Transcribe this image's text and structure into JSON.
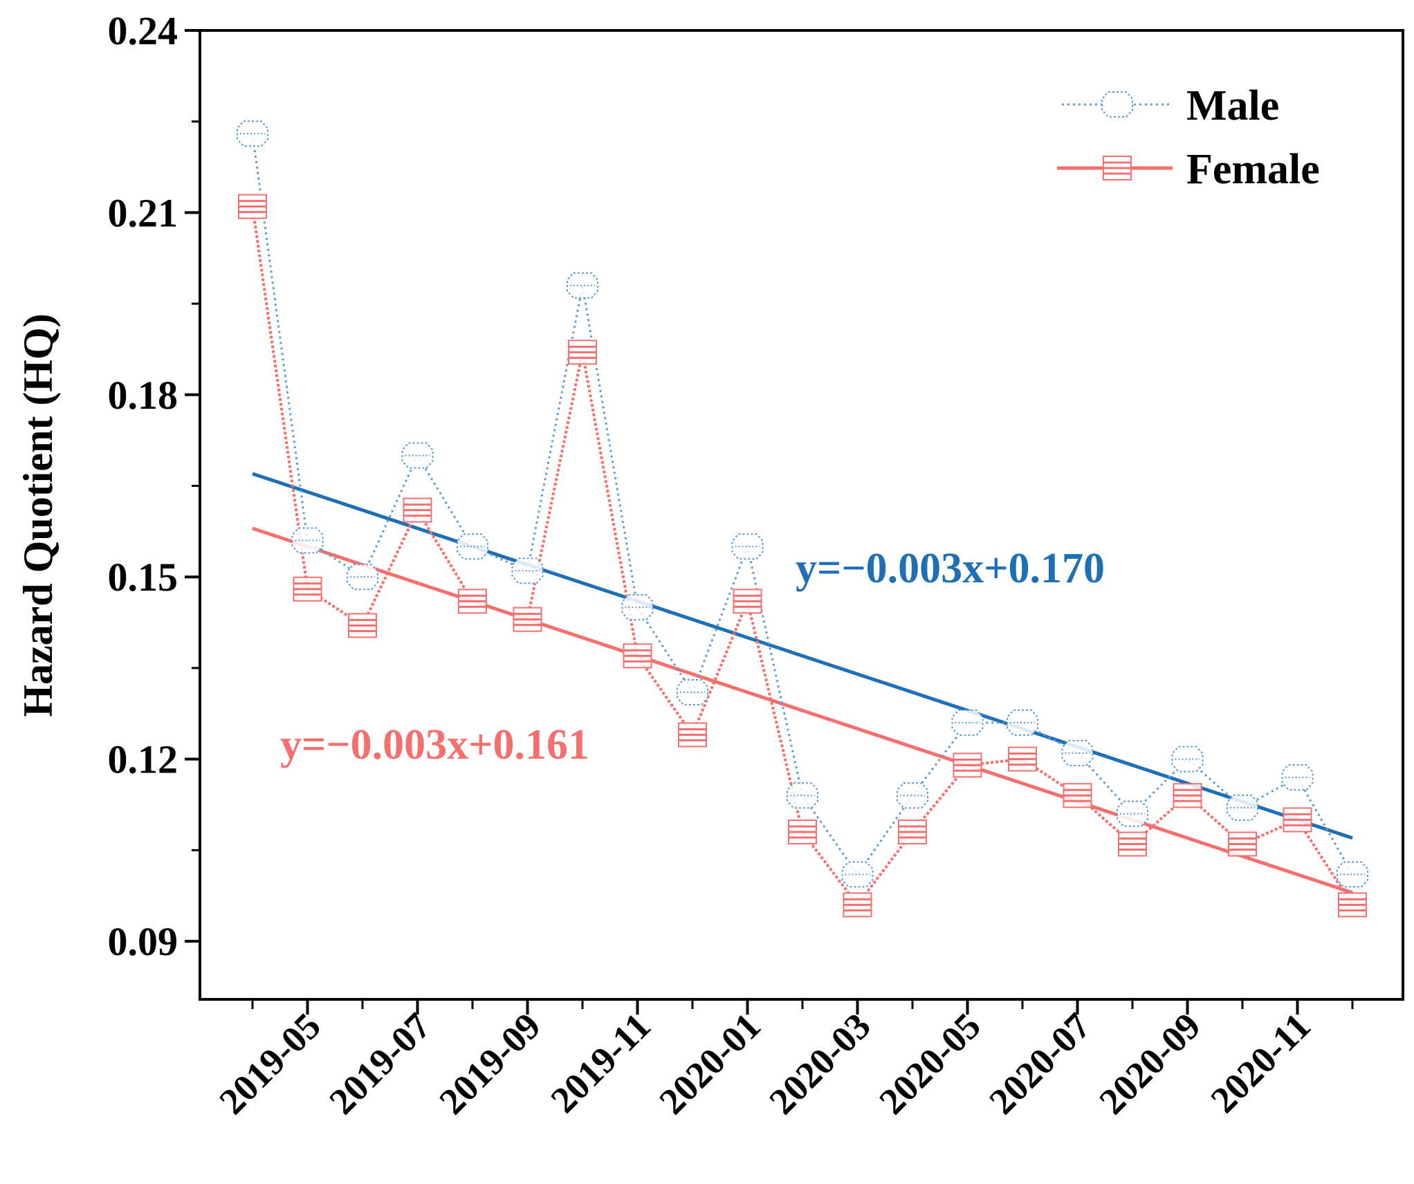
{
  "chart_data": {
    "type": "line",
    "title": "",
    "xlabel": "",
    "ylabel": "Hazard Quotient (HQ)",
    "ylim": [
      0.08,
      0.24
    ],
    "yticks": [
      "0.09",
      "0.12",
      "0.15",
      "0.18",
      "0.21",
      "0.24"
    ],
    "x": [
      "2019-04",
      "2019-05",
      "2019-06",
      "2019-07",
      "2019-08",
      "2019-09",
      "2019-10",
      "2019-11",
      "2019-12",
      "2020-01",
      "2020-02",
      "2020-03",
      "2020-04",
      "2020-05",
      "2020-06",
      "2020-07",
      "2020-08",
      "2020-09",
      "2020-10",
      "2020-11",
      "2020-12"
    ],
    "xtick_labels": [
      "2019-05",
      "2019-07",
      "2019-09",
      "2019-11",
      "2020-01",
      "2020-03",
      "2020-05",
      "2020-07",
      "2020-09",
      "2020-11"
    ],
    "series": [
      {
        "name": "Male",
        "color": "#5b9bd5",
        "values": [
          0.223,
          0.156,
          0.15,
          0.17,
          0.155,
          0.151,
          0.198,
          0.145,
          0.131,
          0.155,
          0.114,
          0.101,
          0.114,
          0.126,
          0.126,
          0.121,
          0.111,
          0.12,
          0.112,
          0.117,
          0.101
        ]
      },
      {
        "name": "Female",
        "color": "#f4706f",
        "values": [
          0.211,
          0.148,
          0.142,
          0.161,
          0.146,
          0.143,
          0.187,
          0.137,
          0.124,
          0.146,
          0.108,
          0.096,
          0.108,
          0.119,
          0.12,
          0.114,
          0.106,
          0.114,
          0.106,
          0.11,
          0.096
        ]
      }
    ],
    "trendlines": [
      {
        "name": "Male",
        "color": "#1f6fb5",
        "start": 0.167,
        "end": 0.107,
        "label": "y=−0.003x+0.170"
      },
      {
        "name": "Female",
        "color": "#f4706f",
        "start": 0.158,
        "end": 0.098,
        "label": "y=−0.003x+0.161"
      }
    ],
    "legend": {
      "position": "top-right",
      "entries": [
        "Male",
        "Female"
      ]
    },
    "grid": false
  }
}
